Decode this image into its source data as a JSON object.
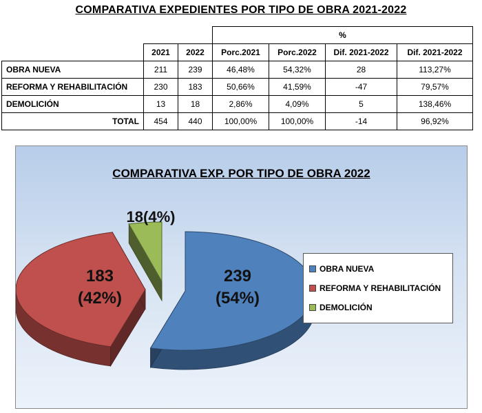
{
  "title": "COMPARATIVA EXPEDIENTES POR TIPO DE OBRA 2021-2022",
  "table": {
    "group_header": "%",
    "headers": [
      "2021",
      "2022",
      "Porc.2021",
      "Porc.2022",
      "Dif. 2021-2022",
      "Dif. 2021-2022"
    ],
    "rows": [
      {
        "label": "OBRA NUEVA",
        "cells": [
          "211",
          "239",
          "46,48%",
          "54,32%",
          "28",
          "113,27%"
        ]
      },
      {
        "label": "REFORMA Y REHABILITACIÓN",
        "cells": [
          "230",
          "183",
          "50,66%",
          "41,59%",
          "-47",
          "79,57%"
        ]
      },
      {
        "label": "DEMOLICIÓN",
        "cells": [
          "13",
          "18",
          "2,86%",
          "4,09%",
          "5",
          "138,46%"
        ]
      },
      {
        "label": "TOTAL",
        "cells": [
          "454",
          "440",
          "100,00%",
          "100,00%",
          "-14",
          "96,92%"
        ]
      }
    ]
  },
  "chart_data": {
    "type": "pie",
    "title": "COMPARATIVA EXP. POR TIPO DE OBRA 2022",
    "slices": [
      {
        "label": "OBRA NUEVA",
        "value": 239,
        "data_label_value": "239",
        "data_label_pct": "(54%)",
        "color": "#4f81bd"
      },
      {
        "label": "REFORMA Y REHABILITACIÓN",
        "value": 183,
        "data_label_value": "183",
        "data_label_pct": "(42%)",
        "color": "#c0504d"
      },
      {
        "label": "DEMOLICIÓN",
        "value": 18,
        "data_label_value": "18",
        "data_label_pct": "(4%)",
        "color": "#9bbb59"
      }
    ],
    "legend": [
      "OBRA NUEVA",
      "REFORMA Y REHABILITACIÓN",
      "DEMOLICIÓN"
    ],
    "legend_position": "right",
    "exploded": true,
    "three_d": true
  }
}
